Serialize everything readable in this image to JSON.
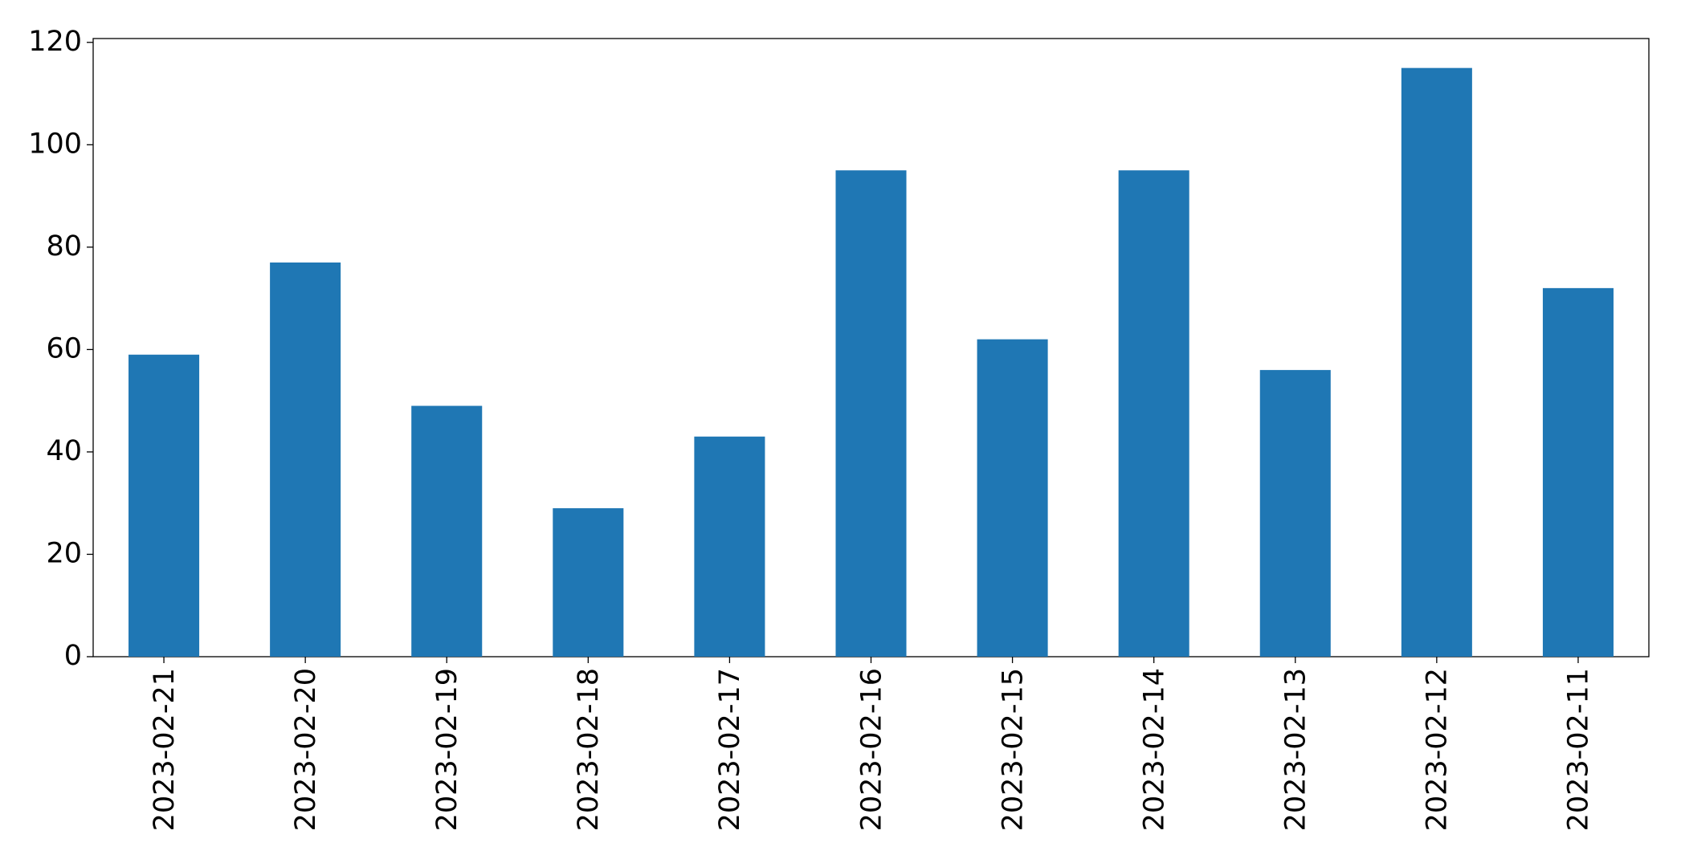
{
  "chart_data": {
    "type": "bar",
    "categories": [
      "2023-02-21",
      "2023-02-20",
      "2023-02-19",
      "2023-02-18",
      "2023-02-17",
      "2023-02-16",
      "2023-02-15",
      "2023-02-14",
      "2023-02-13",
      "2023-02-12",
      "2023-02-11"
    ],
    "values": [
      59,
      77,
      49,
      29,
      43,
      95,
      62,
      95,
      56,
      115,
      72
    ],
    "color": "#1f77b4",
    "ylim": [
      0,
      120.75
    ],
    "yticks": [
      0,
      20,
      40,
      60,
      80,
      100,
      120
    ],
    "grid": false
  }
}
